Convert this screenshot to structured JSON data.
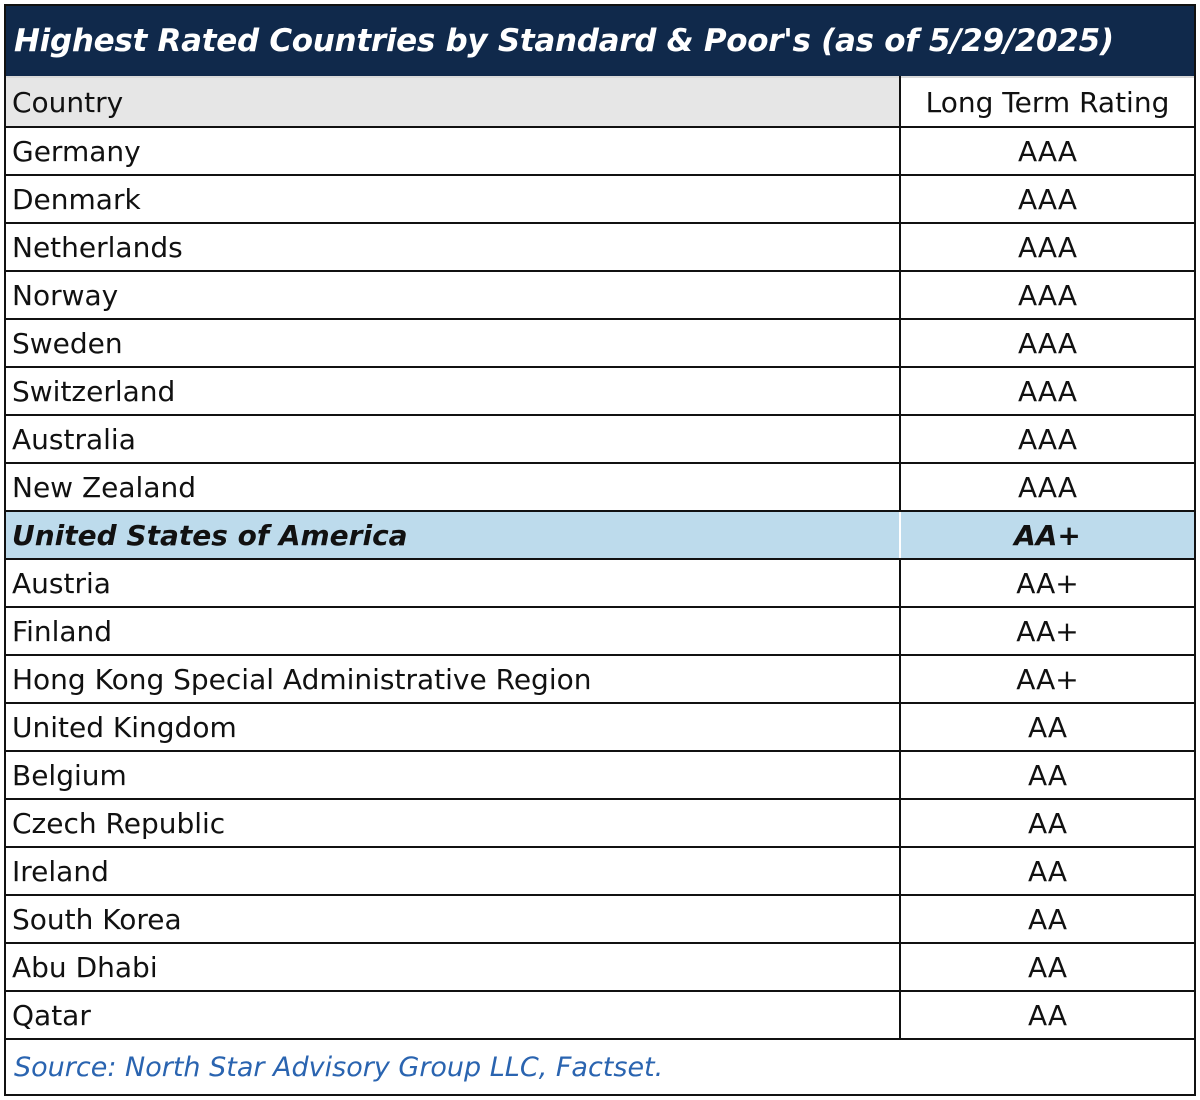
{
  "title": "Highest Rated Countries by Standard & Poor's (as of 5/29/2025)",
  "columns": {
    "country": "Country",
    "rating": "Long Term Rating"
  },
  "rows": [
    {
      "country": "Germany",
      "rating": "AAA"
    },
    {
      "country": "Denmark",
      "rating": "AAA"
    },
    {
      "country": "Netherlands",
      "rating": "AAA"
    },
    {
      "country": "Norway",
      "rating": "AAA"
    },
    {
      "country": "Sweden",
      "rating": "AAA"
    },
    {
      "country": "Switzerland",
      "rating": "AAA"
    },
    {
      "country": "Australia",
      "rating": "AAA"
    },
    {
      "country": "New Zealand",
      "rating": "AAA"
    },
    {
      "country": "United States of America",
      "rating": "AA+",
      "highlight": true
    },
    {
      "country": "Austria",
      "rating": "AA+"
    },
    {
      "country": "Finland",
      "rating": "AA+"
    },
    {
      "country": "Hong Kong Special Administrative Region",
      "rating": "AA+"
    },
    {
      "country": "United Kingdom",
      "rating": "AA"
    },
    {
      "country": "Belgium",
      "rating": "AA"
    },
    {
      "country": "Czech Republic",
      "rating": "AA"
    },
    {
      "country": "Ireland",
      "rating": "AA"
    },
    {
      "country": "South Korea",
      "rating": "AA"
    },
    {
      "country": "Abu Dhabi",
      "rating": "AA"
    },
    {
      "country": "Qatar",
      "rating": "AA"
    }
  ],
  "source": "Source: North Star Advisory Group LLC, Factset.",
  "colors": {
    "title_background": "#10294b",
    "title_text": "#ffffff",
    "header_background": "#e6e6e6",
    "highlight_background": "#bddbec",
    "source_text": "#2a64b0"
  }
}
